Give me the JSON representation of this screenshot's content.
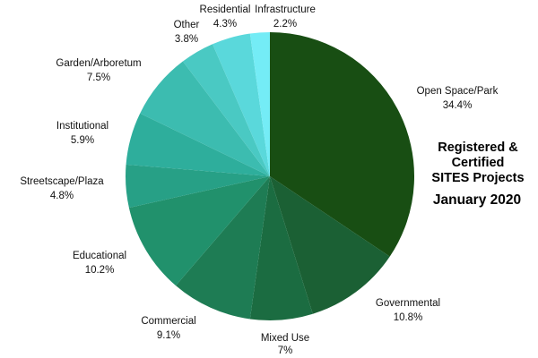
{
  "chart_data": {
    "type": "pie",
    "title_lines": [
      "Registered &",
      "Certified",
      "SITES Projects"
    ],
    "subtitle": "January 2020",
    "slices": [
      {
        "name": "Open Space/Park",
        "value": 34.4,
        "pct_label": "34.4%",
        "color": "#184e13"
      },
      {
        "name": "Governmental",
        "value": 10.8,
        "pct_label": "10.8%",
        "color": "#1b6034"
      },
      {
        "name": "Mixed Use",
        "value": 7,
        "pct_label": "7%",
        "color": "#1b6c41"
      },
      {
        "name": "Commercial",
        "value": 9.1,
        "pct_label": "9.1%",
        "color": "#1e7c54"
      },
      {
        "name": "Educational",
        "value": 10.2,
        "pct_label": "10.2%",
        "color": "#21916c"
      },
      {
        "name": "Streetscape/Plaza",
        "value": 4.8,
        "pct_label": "4.8%",
        "color": "#27a086"
      },
      {
        "name": "Institutional",
        "value": 5.9,
        "pct_label": "5.9%",
        "color": "#2eae9c"
      },
      {
        "name": "Garden/Arboretum",
        "value": 7.5,
        "pct_label": "7.5%",
        "color": "#3cbcb0"
      },
      {
        "name": "Other",
        "value": 3.8,
        "pct_label": "3.8%",
        "color": "#4ac9c3"
      },
      {
        "name": "Residential",
        "value": 4.3,
        "pct_label": "4.3%",
        "color": "#5ad8db"
      },
      {
        "name": "Infrastructure",
        "value": 2.2,
        "pct_label": "2.2%",
        "color": "#74ecf6"
      }
    ]
  }
}
